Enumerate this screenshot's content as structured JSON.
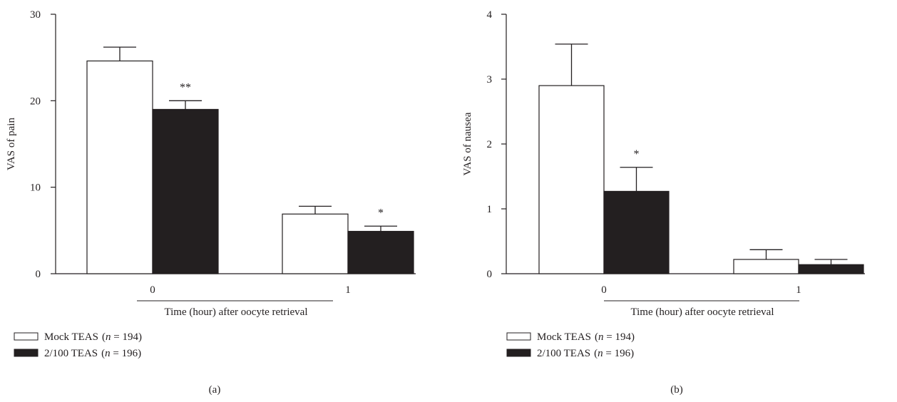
{
  "chart_data": [
    {
      "type": "bar",
      "panel_label": "(a)",
      "ylabel": "VAS of pain",
      "xlabel": "Time (hour) after oocyte retrieval",
      "categories": [
        "0",
        "1"
      ],
      "ylim": [
        0,
        30
      ],
      "yticks": [
        "0",
        "10",
        "20",
        "30"
      ],
      "series": [
        {
          "name": "Mock TEAS",
          "n_label": "(n = 194)",
          "fill": "#ffffff",
          "values": [
            24.6,
            6.9
          ],
          "errors": [
            1.6,
            0.9
          ]
        },
        {
          "name": "2/100 TEAS",
          "n_label": "(n = 196)",
          "fill": "#231f20",
          "values": [
            19.0,
            4.9
          ],
          "errors": [
            1.0,
            0.6
          ]
        }
      ],
      "annotations": [
        {
          "category": 0,
          "series": 1,
          "text": "**"
        },
        {
          "category": 1,
          "series": 1,
          "text": "*"
        }
      ]
    },
    {
      "type": "bar",
      "panel_label": "(b)",
      "ylabel": "VAS of nausea",
      "xlabel": "Time (hour) after oocyte retrieval",
      "categories": [
        "0",
        "1"
      ],
      "ylim": [
        0,
        4
      ],
      "yticks": [
        "0",
        "1",
        "2",
        "3",
        "4"
      ],
      "series": [
        {
          "name": "Mock TEAS",
          "n_label": "(n = 194)",
          "fill": "#ffffff",
          "values": [
            2.9,
            0.22
          ],
          "errors": [
            0.64,
            0.15
          ]
        },
        {
          "name": "2/100 TEAS",
          "n_label": "(n = 196)",
          "fill": "#231f20",
          "values": [
            1.27,
            0.14
          ],
          "errors": [
            0.37,
            0.08
          ]
        }
      ],
      "annotations": [
        {
          "category": 0,
          "series": 1,
          "text": "*"
        }
      ]
    }
  ]
}
